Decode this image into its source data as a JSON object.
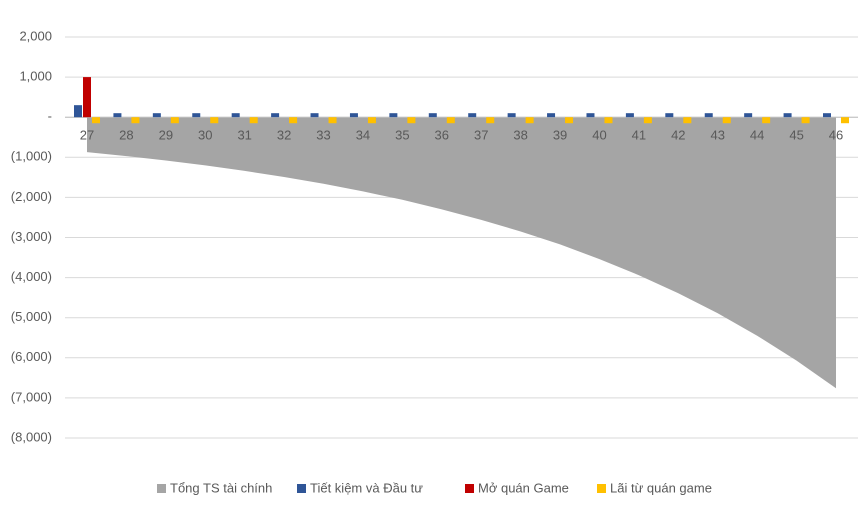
{
  "chart_data": {
    "type": "bar-area",
    "categories": [
      "27",
      "28",
      "29",
      "30",
      "31",
      "32",
      "33",
      "34",
      "35",
      "36",
      "37",
      "38",
      "39",
      "40",
      "41",
      "42",
      "43",
      "44",
      "45",
      "46"
    ],
    "series": [
      {
        "name": "Tổng TS tài chính",
        "type": "area",
        "color": "#a5a5a5",
        "values": [
          -870,
          -970,
          -1080,
          -1200,
          -1340,
          -1490,
          -1660,
          -1850,
          -2060,
          -2300,
          -2560,
          -2850,
          -3170,
          -3540,
          -3940,
          -4390,
          -4890,
          -5450,
          -6070,
          -6760
        ]
      },
      {
        "name": "Tiết kiệm và Đầu tư",
        "type": "bar",
        "color": "#2f5597",
        "values": [
          300,
          100,
          100,
          100,
          100,
          100,
          100,
          100,
          100,
          100,
          100,
          100,
          100,
          100,
          100,
          100,
          100,
          100,
          100,
          100
        ]
      },
      {
        "name": "Mở quán Game",
        "type": "bar",
        "color": "#c00000",
        "values": [
          1000,
          0,
          0,
          0,
          0,
          0,
          0,
          0,
          0,
          0,
          0,
          0,
          0,
          0,
          0,
          0,
          0,
          0,
          0,
          0
        ]
      },
      {
        "name": "Lãi từ quán game",
        "type": "bar",
        "color": "#ffc000",
        "values": [
          -150,
          -150,
          -150,
          -150,
          -150,
          -150,
          -150,
          -150,
          -150,
          -150,
          -150,
          -150,
          -150,
          -150,
          -150,
          -150,
          -150,
          -150,
          -150,
          -150
        ]
      }
    ],
    "ylim": [
      -8000,
      2000
    ],
    "yticks": [
      {
        "value": 2000,
        "label": "2,000"
      },
      {
        "value": 1000,
        "label": "1,000"
      },
      {
        "value": 0,
        "label": "-"
      },
      {
        "value": -1000,
        "label": "(1,000)"
      },
      {
        "value": -2000,
        "label": "(2,000)"
      },
      {
        "value": -3000,
        "label": "(3,000)"
      },
      {
        "value": -4000,
        "label": "(4,000)"
      },
      {
        "value": -5000,
        "label": "(5,000)"
      },
      {
        "value": -6000,
        "label": "(6,000)"
      },
      {
        "value": -7000,
        "label": "(7,000)"
      },
      {
        "value": -8000,
        "label": "(8,000)"
      }
    ],
    "grid": true,
    "legend": "bottom"
  }
}
